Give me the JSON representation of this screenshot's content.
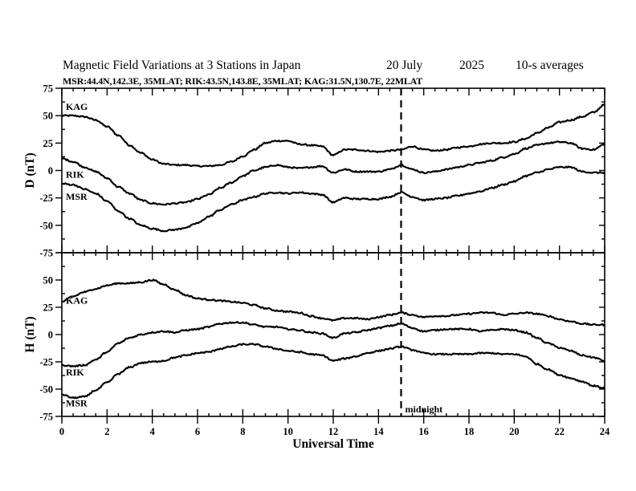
{
  "header": {
    "title": "Magnetic Field Variations at 3 Stations in Japan",
    "date": "20 July",
    "year": "2025",
    "averaging": "10-s averages",
    "stations_line": "MSR:44.4N,142.3E, 35MLAT;  RIK:43.5N,143.8E, 35MLAT;  KAG:31.5N,130.7E, 22MLAT"
  },
  "chart_data": [
    {
      "type": "line",
      "panel": "top",
      "ylabel": "D (nT)",
      "ylim": [
        -75,
        75
      ],
      "yticks": [
        -75,
        -50,
        -25,
        0,
        25,
        50,
        75
      ],
      "xlim": [
        0,
        24
      ],
      "x": [
        0,
        0.5,
        1,
        1.5,
        2,
        2.5,
        3,
        3.5,
        4,
        4.5,
        5,
        5.5,
        6,
        6.5,
        7,
        7.5,
        8,
        8.5,
        9,
        9.5,
        10,
        10.5,
        11,
        11.5,
        12,
        12.5,
        13,
        13.5,
        14,
        14.5,
        15,
        15.5,
        16,
        16.5,
        17,
        17.5,
        18,
        18.5,
        19,
        19.5,
        20,
        20.5,
        21,
        21.5,
        22,
        22.5,
        23,
        23.5,
        24
      ],
      "series": [
        {
          "name": "KAG",
          "values": [
            50,
            50,
            49,
            46,
            40,
            32,
            23,
            16,
            10,
            6,
            5,
            5,
            4,
            4,
            5,
            8,
            13,
            19,
            25,
            27,
            27,
            24,
            23,
            22,
            14,
            19,
            19,
            18,
            17,
            18,
            19,
            22,
            19,
            18,
            19,
            21,
            22,
            24,
            25,
            25,
            26,
            29,
            34,
            39,
            44,
            46,
            49,
            53,
            60
          ]
        },
        {
          "name": "RIK",
          "values": [
            11,
            8,
            3,
            -1,
            -7,
            -15,
            -21,
            -27,
            -30,
            -31,
            -30,
            -29,
            -26,
            -22,
            -16,
            -11,
            -5,
            0,
            3,
            5,
            3,
            2,
            3,
            4,
            -2,
            1,
            -1,
            -1,
            -1,
            1,
            5,
            1,
            -2,
            -1,
            1,
            3,
            5,
            7,
            9,
            12,
            15,
            20,
            23,
            25,
            26,
            25,
            20,
            19,
            24
          ]
        },
        {
          "name": "MSR",
          "values": [
            -12,
            -13,
            -17,
            -21,
            -28,
            -37,
            -44,
            -50,
            -53,
            -55,
            -54,
            -52,
            -48,
            -42,
            -36,
            -31,
            -27,
            -24,
            -21,
            -20,
            -21,
            -20,
            -21,
            -22,
            -29,
            -25,
            -26,
            -26,
            -26,
            -24,
            -20,
            -24,
            -27,
            -26,
            -25,
            -23,
            -21,
            -19,
            -16,
            -13,
            -10,
            -5,
            -2,
            1,
            3,
            3,
            -1,
            -2,
            -2
          ]
        }
      ],
      "annotations": [
        "KAG",
        "RIK",
        "MSR"
      ]
    },
    {
      "type": "line",
      "panel": "bottom",
      "ylabel": "H (nT)",
      "ylim": [
        -75,
        75
      ],
      "yticks": [
        -75,
        -50,
        -25,
        0,
        25,
        50
      ],
      "xlim": [
        0,
        24
      ],
      "xticks": [
        0,
        2,
        4,
        6,
        8,
        10,
        12,
        14,
        16,
        18,
        20,
        22,
        24
      ],
      "xlabel": "Universal Time",
      "x": [
        0,
        0.5,
        1,
        1.5,
        2,
        2.5,
        3,
        3.5,
        4,
        4.5,
        5,
        5.5,
        6,
        6.5,
        7,
        7.5,
        8,
        8.5,
        9,
        9.5,
        10,
        10.5,
        11,
        11.5,
        12,
        12.5,
        13,
        13.5,
        14,
        14.5,
        15,
        15.5,
        16,
        16.5,
        17,
        17.5,
        18,
        18.5,
        19,
        19.5,
        20,
        20.5,
        21,
        21.5,
        22,
        22.5,
        23,
        23.5,
        24
      ],
      "series": [
        {
          "name": "KAG",
          "values": [
            30,
            35,
            39,
            42,
            45,
            47,
            47,
            48,
            50,
            46,
            41,
            36,
            33,
            32,
            31,
            30,
            29,
            27,
            24,
            22,
            21,
            20,
            17,
            15,
            13,
            15,
            15,
            14,
            16,
            18,
            20,
            18,
            16,
            17,
            17,
            18,
            19,
            20,
            20,
            18,
            19,
            20,
            19,
            17,
            14,
            12,
            10,
            9,
            9
          ]
        },
        {
          "name": "RIK",
          "values": [
            -28,
            -29,
            -28,
            -23,
            -16,
            -8,
            -3,
            0,
            2,
            3,
            2,
            4,
            5,
            7,
            10,
            11,
            11,
            9,
            7,
            7,
            5,
            4,
            2,
            1,
            -3,
            1,
            2,
            4,
            6,
            8,
            10,
            6,
            3,
            4,
            5,
            5,
            5,
            3,
            4,
            5,
            4,
            2,
            -3,
            -8,
            -12,
            -15,
            -19,
            -21,
            -24
          ]
        },
        {
          "name": "MSR",
          "values": [
            -55,
            -58,
            -57,
            -51,
            -44,
            -36,
            -30,
            -26,
            -25,
            -24,
            -21,
            -19,
            -17,
            -16,
            -13,
            -11,
            -9,
            -9,
            -11,
            -13,
            -15,
            -16,
            -18,
            -19,
            -24,
            -22,
            -20,
            -17,
            -15,
            -13,
            -11,
            -14,
            -17,
            -18,
            -18,
            -18,
            -18,
            -17,
            -17,
            -18,
            -18,
            -20,
            -27,
            -32,
            -37,
            -40,
            -43,
            -47,
            -49
          ]
        }
      ],
      "annotations": [
        "KAG",
        "RIK",
        "MSR",
        "midnight"
      ],
      "midnight_ut": 15
    }
  ]
}
